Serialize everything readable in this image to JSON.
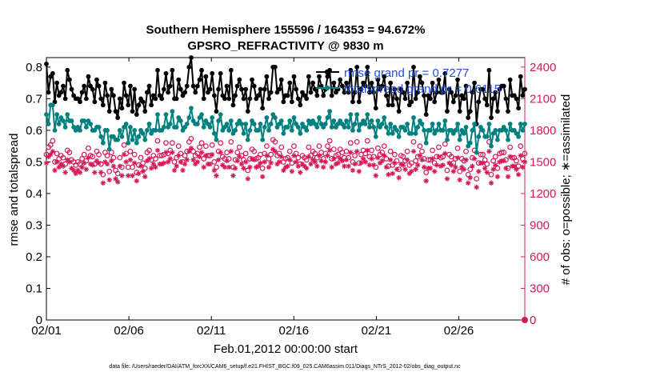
{
  "chart_data": {
    "type": "line",
    "title_line1": "Southern Hemisphere 155596 / 164353 = 94.672%",
    "title_line2": "GPSRO_REFRACTIVITY @ 9830 m",
    "xlabel": "Feb.01,2012 00:00:00 start",
    "ylabel_left": "rmse and totalspread",
    "ylabel_right": "# of obs: o=possible; ∗=assimilated",
    "footer": "data file: /Users/raeder/DAI/ATM_forcXX/CAM6_setup/f.e21.FHIST_BGC.f09_025.CAM6assim.011/Diags_NTrS_2012-02/obs_diag_output.nc",
    "x_tick_labels": [
      "02/01",
      "02/06",
      "02/11",
      "02/16",
      "02/21",
      "02/26"
    ],
    "x_tick_days": [
      0,
      5,
      10,
      15,
      20,
      25
    ],
    "xlim_days": [
      0,
      29
    ],
    "ylim_left": [
      0,
      0.83
    ],
    "y_ticks_left": [
      "0",
      "0.1",
      "0.2",
      "0.3",
      "0.4",
      "0.5",
      "0.6",
      "0.7",
      "0.8"
    ],
    "ylim_right": [
      0,
      2490
    ],
    "y_ticks_right": [
      "0",
      "300",
      "600",
      "900",
      "1200",
      "1500",
      "1800",
      "2100",
      "2400"
    ],
    "colors": {
      "rmse": "#000000",
      "spread": "#00807f",
      "counts": "#d6185a",
      "legend_text": "#1f4fd6"
    },
    "legend": {
      "rmse": "rmse grand pr = 0.7277",
      "spread": "totalspread grand pr = 0.6115"
    },
    "series": [
      {
        "name": "rmse",
        "values": [
          0.81,
          0.72,
          0.77,
          0.78,
          0.69,
          0.75,
          0.71,
          0.72,
          0.74,
          0.7,
          0.79,
          0.76,
          0.73,
          0.71,
          0.7,
          0.7,
          0.69,
          0.72,
          0.74,
          0.7,
          0.77,
          0.74,
          0.73,
          0.69,
          0.76,
          0.74,
          0.7,
          0.68,
          0.75,
          0.71,
          0.66,
          0.73,
          0.71,
          0.66,
          0.64,
          0.7,
          0.67,
          0.75,
          0.71,
          0.68,
          0.74,
          0.66,
          0.73,
          0.65,
          0.68,
          0.7,
          0.69,
          0.66,
          0.72,
          0.74,
          0.68,
          0.71,
          0.7,
          0.79,
          0.71,
          0.7,
          0.73,
          0.78,
          0.72,
          0.74,
          0.79,
          0.7,
          0.7,
          0.76,
          0.73,
          0.71,
          0.72,
          0.74,
          0.8,
          0.83,
          0.74,
          0.72,
          0.74,
          0.76,
          0.79,
          0.7,
          0.77,
          0.72,
          0.73,
          0.78,
          0.71,
          0.66,
          0.73,
          0.78,
          0.71,
          0.7,
          0.74,
          0.7,
          0.79,
          0.68,
          0.71,
          0.74,
          0.76,
          0.73,
          0.7,
          0.73,
          0.66,
          0.7,
          0.76,
          0.74,
          0.7,
          0.71,
          0.73,
          0.67,
          0.73,
          0.77,
          0.7,
          0.72,
          0.8,
          0.8,
          0.72,
          0.73,
          0.76,
          0.69,
          0.71,
          0.71,
          0.75,
          0.69,
          0.77,
          0.73,
          0.7,
          0.68,
          0.72,
          0.71,
          0.7,
          0.77,
          0.72,
          0.75,
          0.73,
          0.71,
          0.77,
          0.74,
          0.71,
          0.73,
          0.77,
          0.79,
          0.71,
          0.75,
          0.72,
          0.73,
          0.76,
          0.74,
          0.72,
          0.75,
          0.72,
          0.79,
          0.69,
          0.72,
          0.8,
          0.69,
          0.73,
          0.75,
          0.74,
          0.8,
          0.72,
          0.75,
          0.72,
          0.67,
          0.76,
          0.73,
          0.74,
          0.77,
          0.71,
          0.68,
          0.75,
          0.68,
          0.73,
          0.7,
          0.66,
          0.73,
          0.72,
          0.7,
          0.75,
          0.68,
          0.69,
          0.8,
          0.7,
          0.72,
          0.77,
          0.75,
          0.71,
          0.65,
          0.71,
          0.7,
          0.75,
          0.69,
          0.72,
          0.76,
          0.72,
          0.72,
          0.78,
          0.66,
          0.73,
          0.72,
          0.69,
          0.71,
          0.76,
          0.66,
          0.71,
          0.7,
          0.74,
          0.64,
          0.66,
          0.72,
          0.75,
          0.62,
          0.69,
          0.73,
          0.73,
          0.7,
          0.68,
          0.79,
          0.64,
          0.7,
          0.72,
          0.66,
          0.73,
          0.74,
          0.74,
          0.7,
          0.66,
          0.76,
          0.71,
          0.71,
          0.7,
          0.67,
          0.77,
          0.71,
          0.73
        ]
      },
      {
        "name": "totalspread",
        "values": [
          0.65,
          0.62,
          0.68,
          0.68,
          0.6,
          0.65,
          0.62,
          0.64,
          0.63,
          0.61,
          0.65,
          0.63,
          0.63,
          0.61,
          0.6,
          0.61,
          0.6,
          0.63,
          0.63,
          0.61,
          0.63,
          0.62,
          0.6,
          0.6,
          0.61,
          0.61,
          0.58,
          0.56,
          0.6,
          0.6,
          0.54,
          0.58,
          0.58,
          0.57,
          0.57,
          0.6,
          0.58,
          0.61,
          0.62,
          0.56,
          0.61,
          0.57,
          0.6,
          0.56,
          0.58,
          0.6,
          0.59,
          0.57,
          0.6,
          0.62,
          0.59,
          0.6,
          0.6,
          0.65,
          0.6,
          0.6,
          0.61,
          0.65,
          0.61,
          0.62,
          0.66,
          0.61,
          0.61,
          0.64,
          0.63,
          0.6,
          0.61,
          0.62,
          0.64,
          0.67,
          0.63,
          0.62,
          0.62,
          0.64,
          0.65,
          0.61,
          0.63,
          0.62,
          0.61,
          0.64,
          0.59,
          0.57,
          0.63,
          0.65,
          0.6,
          0.61,
          0.62,
          0.6,
          0.63,
          0.59,
          0.6,
          0.62,
          0.63,
          0.62,
          0.59,
          0.62,
          0.57,
          0.6,
          0.63,
          0.62,
          0.6,
          0.6,
          0.62,
          0.57,
          0.61,
          0.64,
          0.6,
          0.62,
          0.65,
          0.64,
          0.61,
          0.62,
          0.63,
          0.59,
          0.61,
          0.61,
          0.63,
          0.6,
          0.64,
          0.62,
          0.61,
          0.59,
          0.62,
          0.61,
          0.6,
          0.63,
          0.62,
          0.63,
          0.62,
          0.61,
          0.64,
          0.62,
          0.61,
          0.62,
          0.64,
          0.66,
          0.61,
          0.63,
          0.61,
          0.62,
          0.63,
          0.62,
          0.61,
          0.63,
          0.61,
          0.65,
          0.6,
          0.62,
          0.65,
          0.6,
          0.62,
          0.63,
          0.62,
          0.65,
          0.61,
          0.63,
          0.61,
          0.58,
          0.63,
          0.61,
          0.62,
          0.64,
          0.61,
          0.59,
          0.62,
          0.59,
          0.61,
          0.6,
          0.58,
          0.61,
          0.61,
          0.6,
          0.62,
          0.59,
          0.59,
          0.64,
          0.59,
          0.61,
          0.63,
          0.62,
          0.6,
          0.56,
          0.6,
          0.6,
          0.62,
          0.59,
          0.6,
          0.62,
          0.6,
          0.6,
          0.63,
          0.57,
          0.6,
          0.6,
          0.59,
          0.6,
          0.62,
          0.57,
          0.6,
          0.59,
          0.61,
          0.55,
          0.56,
          0.6,
          0.62,
          0.53,
          0.58,
          0.61,
          0.6,
          0.58,
          0.58,
          0.62,
          0.55,
          0.59,
          0.6,
          0.57,
          0.6,
          0.6,
          0.61,
          0.6,
          0.57,
          0.62,
          0.6,
          0.6,
          0.59,
          0.58,
          0.62,
          0.6,
          0.62
        ]
      }
    ],
    "counts_possible": [
      1570,
      1640,
      1660,
      1700,
      1500,
      1580,
      1530,
      1560,
      1540,
      1480,
      1610,
      1590,
      1520,
      1500,
      1470,
      1500,
      1480,
      1530,
      1570,
      1510,
      1630,
      1560,
      1550,
      1480,
      1600,
      1570,
      1480,
      1380,
      1590,
      1560,
      1410,
      1590,
      1540,
      1420,
      1390,
      1540,
      1450,
      1660,
      1580,
      1450,
      1600,
      1450,
      1570,
      1400,
      1470,
      1540,
      1490,
      1440,
      1590,
      1610,
      1520,
      1560,
      1530,
      1700,
      1560,
      1560,
      1570,
      1680,
      1580,
      1610,
      1680,
      1500,
      1540,
      1650,
      1580,
      1500,
      1560,
      1600,
      1690,
      1720,
      1600,
      1560,
      1580,
      1640,
      1680,
      1530,
      1650,
      1560,
      1560,
      1660,
      1500,
      1450,
      1600,
      1680,
      1550,
      1530,
      1590,
      1530,
      1690,
      1450,
      1520,
      1590,
      1640,
      1560,
      1520,
      1580,
      1420,
      1530,
      1620,
      1600,
      1530,
      1540,
      1570,
      1440,
      1580,
      1650,
      1530,
      1570,
      1710,
      1690,
      1560,
      1580,
      1640,
      1500,
      1530,
      1540,
      1600,
      1490,
      1650,
      1580,
      1540,
      1480,
      1560,
      1540,
      1520,
      1640,
      1560,
      1600,
      1580,
      1540,
      1650,
      1590,
      1530,
      1580,
      1650,
      1700,
      1530,
      1620,
      1560,
      1570,
      1620,
      1590,
      1540,
      1600,
      1540,
      1680,
      1500,
      1560,
      1690,
      1490,
      1570,
      1610,
      1580,
      1700,
      1550,
      1610,
      1550,
      1450,
      1630,
      1570,
      1590,
      1650,
      1530,
      1460,
      1600,
      1470,
      1570,
      1510,
      1430,
      1560,
      1550,
      1510,
      1600,
      1470,
      1490,
      1690,
      1510,
      1550,
      1650,
      1600,
      1530,
      1400,
      1520,
      1520,
      1610,
      1490,
      1550,
      1640,
      1540,
      1550,
      1670,
      1420,
      1570,
      1550,
      1490,
      1530,
      1630,
      1410,
      1530,
      1510,
      1600,
      1380,
      1430,
      1540,
      1610,
      1340,
      1490,
      1570,
      1570,
      1520,
      1480,
      1690,
      1380,
      1510,
      1550,
      1440,
      1580,
      1590,
      1590,
      1520,
      1440,
      1640,
      1540,
      1540,
      1510,
      1460,
      1650,
      1530,
      1580
    ],
    "counts_assimilated": [
      1490,
      1550,
      1570,
      1600,
      1420,
      1500,
      1450,
      1480,
      1460,
      1400,
      1520,
      1500,
      1440,
      1420,
      1390,
      1420,
      1400,
      1450,
      1490,
      1430,
      1540,
      1480,
      1470,
      1400,
      1510,
      1490,
      1400,
      1300,
      1500,
      1480,
      1330,
      1510,
      1460,
      1340,
      1310,
      1460,
      1370,
      1570,
      1500,
      1370,
      1520,
      1370,
      1490,
      1320,
      1390,
      1460,
      1410,
      1360,
      1510,
      1530,
      1440,
      1480,
      1450,
      1610,
      1480,
      1480,
      1490,
      1590,
      1500,
      1530,
      1590,
      1420,
      1460,
      1560,
      1500,
      1420,
      1480,
      1520,
      1600,
      1630,
      1520,
      1480,
      1500,
      1550,
      1590,
      1450,
      1560,
      1480,
      1480,
      1570,
      1420,
      1370,
      1520,
      1590,
      1470,
      1450,
      1510,
      1450,
      1600,
      1370,
      1440,
      1510,
      1550,
      1480,
      1440,
      1500,
      1340,
      1450,
      1530,
      1520,
      1450,
      1460,
      1490,
      1360,
      1500,
      1560,
      1450,
      1490,
      1620,
      1600,
      1480,
      1500,
      1550,
      1420,
      1450,
      1460,
      1520,
      1410,
      1560,
      1500,
      1460,
      1400,
      1480,
      1460,
      1440,
      1550,
      1480,
      1520,
      1500,
      1460,
      1560,
      1510,
      1450,
      1500,
      1560,
      1610,
      1450,
      1530,
      1480,
      1490,
      1530,
      1510,
      1460,
      1520,
      1460,
      1590,
      1420,
      1480,
      1600,
      1410,
      1490,
      1530,
      1500,
      1610,
      1470,
      1530,
      1470,
      1370,
      1540,
      1490,
      1510,
      1560,
      1450,
      1380,
      1520,
      1390,
      1490,
      1430,
      1350,
      1480,
      1470,
      1430,
      1520,
      1390,
      1410,
      1600,
      1430,
      1470,
      1560,
      1520,
      1450,
      1320,
      1440,
      1440,
      1530,
      1410,
      1470,
      1550,
      1460,
      1470,
      1580,
      1340,
      1490,
      1470,
      1410,
      1450,
      1540,
      1330,
      1450,
      1430,
      1520,
      1300,
      1350,
      1460,
      1530,
      1260,
      1410,
      1490,
      1490,
      1440,
      1400,
      1600,
      1300,
      1430,
      1470,
      1360,
      1500,
      1510,
      1510,
      1440,
      1360,
      1550,
      1460,
      1460,
      1430,
      1380,
      1560,
      1450,
      1500
    ],
    "right_axis_end_marker": 0
  }
}
